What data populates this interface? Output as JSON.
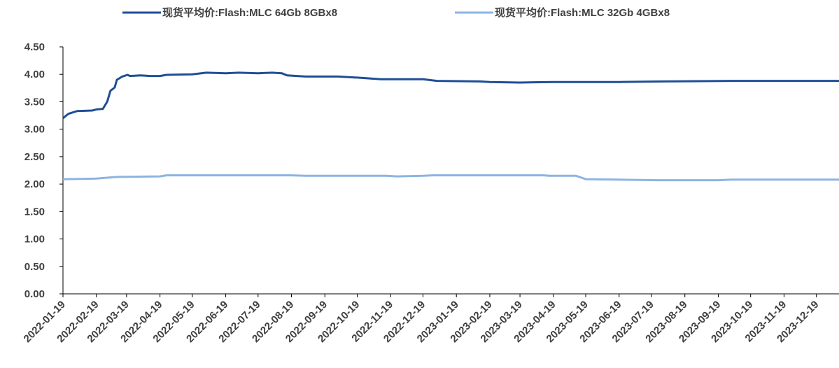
{
  "chart_data": {
    "type": "line",
    "series": [
      {
        "name": "现货平均价:Flash:MLC 64Gb 8GBx8",
        "color": "#1f4e96",
        "x": [
          "2022-01-19",
          "2022-01-24",
          "2022-02-01",
          "2022-02-15",
          "2022-02-19",
          "2022-02-25",
          "2022-03-01",
          "2022-03-04",
          "2022-03-08",
          "2022-03-10",
          "2022-03-15",
          "2022-03-20",
          "2022-03-22",
          "2022-04-01",
          "2022-04-10",
          "2022-04-19",
          "2022-04-25",
          "2022-05-19",
          "2022-06-01",
          "2022-06-19",
          "2022-07-01",
          "2022-07-19",
          "2022-08-01",
          "2022-08-10",
          "2022-08-15",
          "2022-09-01",
          "2022-10-01",
          "2022-10-19",
          "2022-11-10",
          "2022-12-19",
          "2023-01-01",
          "2023-02-10",
          "2023-02-19",
          "2023-03-19",
          "2023-04-19",
          "2023-06-19",
          "2023-08-01",
          "2023-10-01",
          "2024-01-09"
        ],
        "values": [
          3.2,
          3.28,
          3.33,
          3.34,
          3.36,
          3.37,
          3.5,
          3.7,
          3.76,
          3.9,
          3.96,
          3.99,
          3.97,
          3.98,
          3.97,
          3.97,
          3.99,
          4.0,
          4.03,
          4.02,
          4.03,
          4.02,
          4.03,
          4.02,
          3.98,
          3.96,
          3.96,
          3.94,
          3.91,
          3.91,
          3.88,
          3.87,
          3.86,
          3.85,
          3.86,
          3.86,
          3.87,
          3.88,
          3.88
        ]
      },
      {
        "name": "现货平均价:Flash:MLC 32Gb 4GBx8",
        "color": "#8db4e2",
        "x": [
          "2022-01-19",
          "2022-02-19",
          "2022-03-10",
          "2022-04-19",
          "2022-04-25",
          "2022-06-19",
          "2022-08-19",
          "2022-09-01",
          "2022-11-15",
          "2022-11-25",
          "2022-12-19",
          "2022-12-28",
          "2023-01-19",
          "2023-03-19",
          "2023-04-10",
          "2023-04-15",
          "2023-05-10",
          "2023-05-19",
          "2023-06-19",
          "2023-07-25",
          "2023-09-19",
          "2023-10-01",
          "2024-01-09"
        ],
        "values": [
          2.09,
          2.1,
          2.13,
          2.14,
          2.16,
          2.16,
          2.16,
          2.15,
          2.15,
          2.14,
          2.15,
          2.16,
          2.16,
          2.16,
          2.16,
          2.15,
          2.15,
          2.09,
          2.08,
          2.07,
          2.07,
          2.08,
          2.08
        ]
      }
    ],
    "xlim": [
      "2022-01-19",
      "2024-01-09"
    ],
    "xticks": [
      "2022-01-19",
      "2022-02-19",
      "2022-03-19",
      "2022-04-19",
      "2022-05-19",
      "2022-06-19",
      "2022-07-19",
      "2022-08-19",
      "2022-09-19",
      "2022-10-19",
      "2022-11-19",
      "2022-12-19",
      "2023-01-19",
      "2023-02-19",
      "2023-03-19",
      "2023-04-19",
      "2023-05-19",
      "2023-06-19",
      "2023-07-19",
      "2023-08-19",
      "2023-09-19",
      "2023-10-19",
      "2023-11-19",
      "2023-12-19"
    ],
    "ylim": [
      0,
      4.5
    ],
    "yticks": [
      {
        "value": 0,
        "label": "0.00"
      },
      {
        "value": 0.5,
        "label": "0.50"
      },
      {
        "value": 1,
        "label": "1.00"
      },
      {
        "value": 1.5,
        "label": "1.50"
      },
      {
        "value": 2,
        "label": "2.00"
      },
      {
        "value": 2.5,
        "label": "2.50"
      },
      {
        "value": 3,
        "label": "3.00"
      },
      {
        "value": 3.5,
        "label": "3.50"
      },
      {
        "value": 4,
        "label": "4.00"
      },
      {
        "value": 4.5,
        "label": "4.50"
      }
    ],
    "legend": "top",
    "grid": false
  }
}
